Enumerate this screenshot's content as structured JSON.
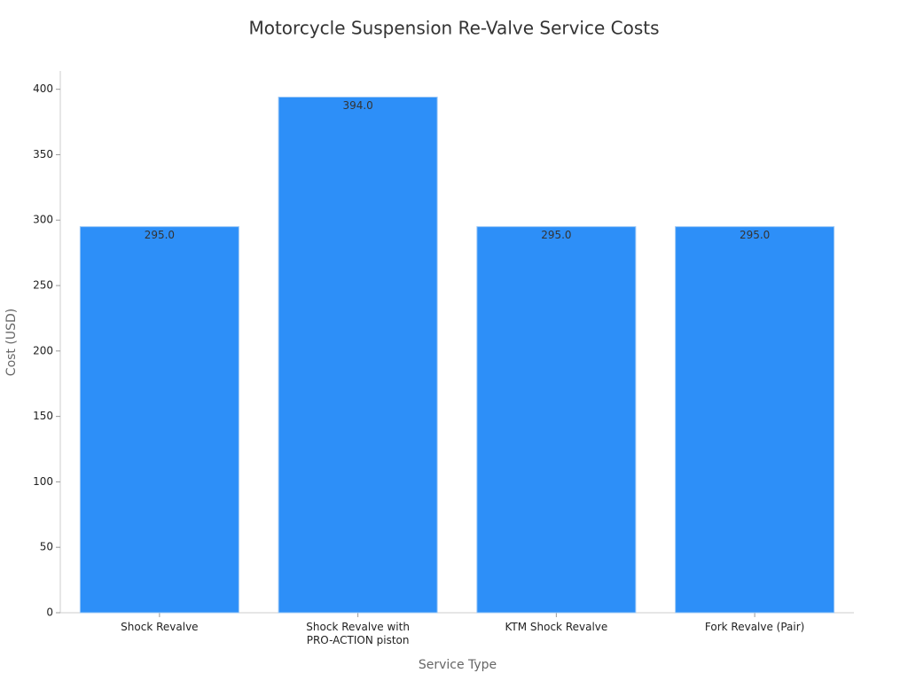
{
  "chart_data": {
    "type": "bar",
    "title": "Motorcycle Suspension Re-Valve Service Costs",
    "x_label": "Service Type",
    "y_label": "Cost (USD)",
    "categories": [
      "Shock Revalve",
      "Shock Revalve with\nPRO-ACTION piston",
      "KTM Shock Revalve",
      "Fork Revalve (Pair)"
    ],
    "values": [
      295,
      394,
      295,
      295
    ],
    "value_labels": [
      "295.0",
      "394.0",
      "295.0",
      "295.0"
    ],
    "color": "#2d8ff8",
    "ylim": [
      0,
      414
    ],
    "yticks": [
      0,
      50,
      100,
      150,
      200,
      250,
      300,
      350,
      400
    ],
    "grid": false
  }
}
